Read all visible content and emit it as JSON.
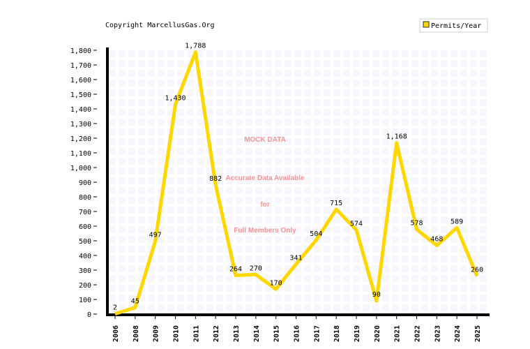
{
  "chart_data": {
    "type": "line",
    "title": "Copyright MarcellusGas.Org",
    "watermark": [
      "MOCK DATA",
      "Accurate Data Available",
      "for",
      "Full Members Only"
    ],
    "categories": [
      "2006",
      "2008",
      "2009",
      "2010",
      "2011",
      "2012",
      "2013",
      "2014",
      "2015",
      "2016",
      "2017",
      "2018",
      "2019",
      "2020",
      "2021",
      "2022",
      "2023",
      "2024",
      "2025"
    ],
    "series": [
      {
        "name": "Permits/Year",
        "color": "#ffd700",
        "values": [
          2,
          45,
          497,
          1430,
          1788,
          882,
          264,
          270,
          170,
          341,
          504,
          715,
          574,
          90,
          1168,
          578,
          468,
          589,
          260
        ],
        "value_labels": [
          "2",
          "45",
          "497",
          "1,430",
          "1,788",
          "882",
          "264",
          "270",
          "170",
          "341",
          "504",
          "715",
          "574",
          "90",
          "1,168",
          "578",
          "468",
          "589",
          "260"
        ]
      }
    ],
    "ylim": [
      0,
      1800
    ],
    "yticks": [
      0,
      100,
      200,
      300,
      400,
      500,
      600,
      700,
      800,
      900,
      {
        "value": 1000,
        "label": "1,000"
      },
      {
        "value": 1100,
        "label": "1,100"
      },
      {
        "value": 1200,
        "label": "1,200"
      },
      {
        "value": 1300,
        "label": "1,300"
      },
      {
        "value": 1400,
        "label": "1,400"
      },
      {
        "value": 1500,
        "label": "1,500"
      },
      {
        "value": 1600,
        "label": "1,600"
      },
      {
        "value": 1700,
        "label": "1,700"
      },
      {
        "value": 1800,
        "label": "1,800"
      }
    ],
    "grid": true,
    "legend": "top-right"
  }
}
